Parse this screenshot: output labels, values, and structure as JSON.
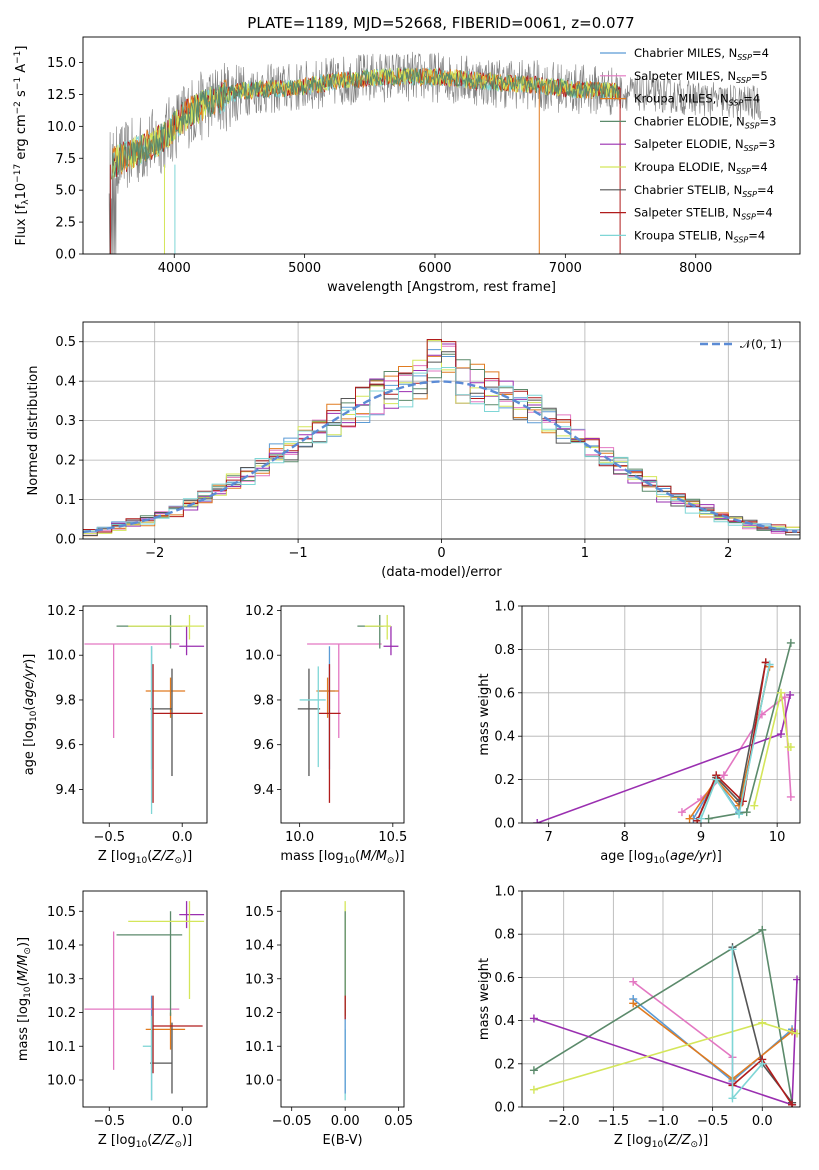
{
  "figure": {
    "title": "PLATE=1189, MJD=52668, FIBERID=0061, z=0.077"
  },
  "colors": {
    "Chabrier MILES": "#5b9bd5",
    "Salpeter MILES": "#e377c2",
    "Kroupa MILES": "#e07b20",
    "Chabrier ELODIE": "#5b8a6b",
    "Salpeter ELODIE": "#9a2fb0",
    "Kroupa ELODIE": "#d4e65a",
    "Chabrier STELIB": "#555555",
    "Salpeter STELIB": "#b01c1c",
    "Kroupa STELIB": "#7fd6d6",
    "data": "#7f7f7f",
    "normal": "#5b8bd5"
  },
  "chart_data": [
    {
      "id": "spectrum",
      "type": "line",
      "xlabel": "wavelength [Angstrom, rest frame]",
      "ylabel": "Flux [f_λ10^-17 erg cm^-2 s^-1 A^-1]",
      "xlim": [
        3300,
        8800
      ],
      "ylim": [
        0,
        17
      ],
      "xticks": [
        4000,
        5000,
        6000,
        7000,
        8000
      ],
      "yticks": [
        0.0,
        2.5,
        5.0,
        7.5,
        10.0,
        12.5,
        15.0
      ],
      "legend_position": "top-right",
      "legend": [
        {
          "label": "Chabrier MILES, N_SSP=4",
          "text": "Chabrier MILES, N",
          "sub": "SSP",
          "tail": "=4"
        },
        {
          "label": "Salpeter MILES, N_SSP=5",
          "text": "Salpeter MILES, N",
          "sub": "SSP",
          "tail": "=5"
        },
        {
          "label": "Kroupa MILES, N_SSP=4",
          "text": "Kroupa MILES, N",
          "sub": "SSP",
          "tail": "=4"
        },
        {
          "label": "Chabrier ELODIE, N_SSP=3",
          "text": "Chabrier ELODIE, N",
          "sub": "SSP",
          "tail": "=3"
        },
        {
          "label": "Salpeter ELODIE, N_SSP=3",
          "text": "Salpeter ELODIE, N",
          "sub": "SSP",
          "tail": "=3"
        },
        {
          "label": "Kroupa ELODIE, N_SSP=4",
          "text": "Kroupa ELODIE, N",
          "sub": "SSP",
          "tail": "=4"
        },
        {
          "label": "Chabrier STELIB, N_SSP=4",
          "text": "Chabrier STELIB, N",
          "sub": "SSP",
          "tail": "=4"
        },
        {
          "label": "Salpeter STELIB, N_SSP=4",
          "text": "Salpeter STELIB, N",
          "sub": "SSP",
          "tail": "=4"
        },
        {
          "label": "Kroupa STELIB, N_SSP=4",
          "text": "Kroupa STELIB, N",
          "sub": "SSP",
          "tail": "=4"
        }
      ],
      "continuum": [
        [
          3500,
          7.0
        ],
        [
          3700,
          8.0
        ],
        [
          3900,
          9.0
        ],
        [
          4100,
          11.0
        ],
        [
          4300,
          12.0
        ],
        [
          4500,
          12.8
        ],
        [
          4700,
          12.9
        ],
        [
          4900,
          13.0
        ],
        [
          5100,
          13.3
        ],
        [
          5300,
          13.6
        ],
        [
          5500,
          13.8
        ],
        [
          5700,
          13.9
        ],
        [
          5900,
          13.9
        ],
        [
          6100,
          13.8
        ],
        [
          6300,
          13.6
        ],
        [
          6500,
          13.4
        ],
        [
          6700,
          13.3
        ],
        [
          6900,
          13.1
        ],
        [
          7100,
          12.9
        ],
        [
          7300,
          12.8
        ],
        [
          7500,
          12.6
        ],
        [
          7700,
          12.5
        ],
        [
          7900,
          12.3
        ],
        [
          8100,
          12.1
        ],
        [
          8300,
          11.9
        ],
        [
          8500,
          11.8
        ]
      ],
      "data_range": [
        3500,
        8500
      ],
      "model_range": [
        3520,
        7420
      ],
      "data_noise": 2.0,
      "model_noise": 0.7
    },
    {
      "id": "residuals",
      "type": "histogram",
      "xlabel": "(data-model)/error",
      "ylabel": "Normed distribution",
      "xlim": [
        -2.5,
        2.5
      ],
      "ylim": [
        0,
        0.55
      ],
      "xticks": [
        -2,
        -1,
        0,
        1,
        2
      ],
      "yticks": [
        0.0,
        0.1,
        0.2,
        0.3,
        0.4,
        0.5
      ],
      "grid": true,
      "legend_position": "top-right",
      "legend": "𝒩(0, 1)",
      "bin_width": 0.1,
      "curve_label": "N(0,1)"
    },
    {
      "id": "age-vs-Z",
      "type": "errorbar",
      "xlabel": "Z [log10(Z/Z☉)]",
      "ylabel": "age [log10(age/yr)]",
      "xlim": [
        -0.68,
        0.17
      ],
      "ylim": [
        9.25,
        10.22
      ],
      "xticks": [
        -0.5,
        0.0
      ],
      "yticks": [
        9.4,
        9.6,
        9.8,
        10.0,
        10.2
      ],
      "points": [
        {
          "series": "Chabrier MILES",
          "x": -0.21,
          "xerr": [
            0.0,
            0.0
          ],
          "y": 9.84,
          "yerr": [
            0.35,
            0.2
          ]
        },
        {
          "series": "Salpeter MILES",
          "x": -0.47,
          "xerr": [
            0.2,
            0.45
          ],
          "y": 10.05,
          "yerr": [
            0.42,
            0.0
          ]
        },
        {
          "series": "Kroupa MILES",
          "x": -0.08,
          "xerr": [
            0.17,
            0.1
          ],
          "y": 9.84,
          "yerr": [
            0.12,
            0.06
          ]
        },
        {
          "series": "Chabrier ELODIE",
          "x": -0.08,
          "xerr": [
            0.37,
            0.08
          ],
          "y": 10.13,
          "yerr": [
            0.1,
            0.05
          ]
        },
        {
          "series": "Salpeter ELODIE",
          "x": 0.03,
          "xerr": [
            0.05,
            0.12
          ],
          "y": 10.04,
          "yerr": [
            0.04,
            0.09
          ]
        },
        {
          "series": "Kroupa ELODIE",
          "x": 0.05,
          "xerr": [
            0.42,
            0.1
          ],
          "y": 10.13,
          "yerr": [
            0.06,
            0.05
          ]
        },
        {
          "series": "Chabrier STELIB",
          "x": -0.07,
          "xerr": [
            0.15,
            0.0
          ],
          "y": 9.76,
          "yerr": [
            0.3,
            0.18
          ]
        },
        {
          "series": "Salpeter STELIB",
          "x": -0.2,
          "xerr": [
            0.0,
            0.34
          ],
          "y": 9.74,
          "yerr": [
            0.4,
            0.22
          ]
        },
        {
          "series": "Kroupa STELIB",
          "x": -0.21,
          "xerr": [
            0.0,
            0.0
          ],
          "y": 9.84,
          "yerr": [
            0.55,
            0.2
          ]
        }
      ]
    },
    {
      "id": "age-vs-mass",
      "type": "errorbar",
      "xlabel": "mass [log10(M/M☉)]",
      "ylabel": "",
      "xlim": [
        9.9,
        10.56
      ],
      "ylim": [
        9.25,
        10.22
      ],
      "xticks": [
        10.0,
        10.5
      ],
      "yticks": [
        9.4,
        9.6,
        9.8,
        10.0,
        10.2
      ],
      "points": [
        {
          "series": "Chabrier MILES",
          "x": 10.16,
          "xerr": [
            0.06,
            0.03
          ],
          "y": 9.84,
          "yerr": [
            0.35,
            0.2
          ]
        },
        {
          "series": "Salpeter MILES",
          "x": 10.21,
          "xerr": [
            0.17,
            0.23
          ],
          "y": 10.05,
          "yerr": [
            0.42,
            0.0
          ]
        },
        {
          "series": "Kroupa MILES",
          "x": 10.15,
          "xerr": [
            0.06,
            0.06
          ],
          "y": 9.84,
          "yerr": [
            0.12,
            0.06
          ]
        },
        {
          "series": "Chabrier ELODIE",
          "x": 10.43,
          "xerr": [
            0.12,
            0.02
          ],
          "y": 10.13,
          "yerr": [
            0.1,
            0.05
          ]
        },
        {
          "series": "Salpeter ELODIE",
          "x": 10.49,
          "xerr": [
            0.04,
            0.04
          ],
          "y": 10.04,
          "yerr": [
            0.04,
            0.09
          ]
        },
        {
          "series": "Kroupa ELODIE",
          "x": 10.47,
          "xerr": [
            0.12,
            0.02
          ],
          "y": 10.13,
          "yerr": [
            0.06,
            0.05
          ]
        },
        {
          "series": "Chabrier STELIB",
          "x": 10.05,
          "xerr": [
            0.06,
            0.06
          ],
          "y": 9.76,
          "yerr": [
            0.3,
            0.18
          ]
        },
        {
          "series": "Salpeter STELIB",
          "x": 10.16,
          "xerr": [
            0.06,
            0.06
          ],
          "y": 9.74,
          "yerr": [
            0.4,
            0.22
          ]
        },
        {
          "series": "Kroupa STELIB",
          "x": 10.1,
          "xerr": [
            0.1,
            0.04
          ],
          "y": 9.8,
          "yerr": [
            0.3,
            0.15
          ]
        }
      ]
    },
    {
      "id": "mass-weight-vs-age",
      "type": "line",
      "xlabel": "age [log10(age/yr)]",
      "ylabel": "mass weight",
      "xlim": [
        6.65,
        10.3
      ],
      "ylim": [
        0,
        1.0
      ],
      "xticks": [
        7,
        8,
        9,
        10
      ],
      "yticks": [
        0.0,
        0.2,
        0.4,
        0.6,
        0.8,
        1.0
      ],
      "grid": true,
      "series": [
        {
          "name": "Chabrier MILES",
          "x": [
            8.9,
            9.2,
            9.5,
            9.9
          ],
          "y": [
            0.02,
            0.2,
            0.05,
            0.73
          ]
        },
        {
          "name": "Salpeter MILES",
          "x": [
            8.75,
            9.0,
            9.3,
            9.8,
            10.1,
            10.18
          ],
          "y": [
            0.05,
            0.11,
            0.22,
            0.5,
            0.58,
            0.12
          ]
        },
        {
          "name": "Kroupa MILES",
          "x": [
            8.85,
            9.2,
            9.5,
            9.9
          ],
          "y": [
            0.02,
            0.2,
            0.08,
            0.72
          ]
        },
        {
          "name": "Chabrier ELODIE",
          "x": [
            9.1,
            9.6,
            10.18
          ],
          "y": [
            0.02,
            0.05,
            0.83
          ]
        },
        {
          "name": "Salpeter ELODIE",
          "x": [
            6.85,
            10.05,
            10.17
          ],
          "y": [
            0.0,
            0.41,
            0.59
          ]
        },
        {
          "name": "Kroupa ELODIE",
          "x": [
            9.7,
            10.05,
            10.15,
            10.18
          ],
          "y": [
            0.08,
            0.6,
            0.35,
            0.35
          ]
        },
        {
          "name": "Chabrier STELIB",
          "x": [
            8.95,
            9.2,
            9.5,
            9.85
          ],
          "y": [
            0.01,
            0.21,
            0.1,
            0.74
          ]
        },
        {
          "name": "Salpeter STELIB",
          "x": [
            8.95,
            9.2,
            9.55,
            9.85
          ],
          "y": [
            0.01,
            0.22,
            0.1,
            0.74
          ]
        },
        {
          "name": "Kroupa STELIB",
          "x": [
            9.0,
            9.2,
            9.5,
            9.9
          ],
          "y": [
            0.02,
            0.2,
            0.04,
            0.73
          ]
        }
      ]
    },
    {
      "id": "mass-vs-Z",
      "type": "errorbar",
      "xlabel": "Z [log10(Z/Z☉)]",
      "ylabel": "mass [log10(M/M☉)]",
      "xlim": [
        -0.68,
        0.17
      ],
      "ylim": [
        9.92,
        10.56
      ],
      "xticks": [
        -0.5,
        0.0
      ],
      "yticks": [
        10.0,
        10.1,
        10.2,
        10.3,
        10.4,
        10.5
      ],
      "points": [
        {
          "series": "Chabrier MILES",
          "x": -0.21,
          "xerr": [
            0.0,
            0.0
          ],
          "y": 10.16,
          "yerr": [
            0.22,
            0.09
          ]
        },
        {
          "series": "Salpeter MILES",
          "x": -0.47,
          "xerr": [
            0.2,
            0.45
          ],
          "y": 10.21,
          "yerr": [
            0.18,
            0.23
          ]
        },
        {
          "series": "Kroupa MILES",
          "x": -0.08,
          "xerr": [
            0.17,
            0.1
          ],
          "y": 10.15,
          "yerr": [
            0.06,
            0.05
          ]
        },
        {
          "series": "Chabrier ELODIE",
          "x": -0.08,
          "xerr": [
            0.37,
            0.08
          ],
          "y": 10.43,
          "yerr": [
            0.24,
            0.07
          ]
        },
        {
          "series": "Salpeter ELODIE",
          "x": 0.03,
          "xerr": [
            0.05,
            0.12
          ],
          "y": 10.49,
          "yerr": [
            0.04,
            0.04
          ]
        },
        {
          "series": "Kroupa ELODIE",
          "x": 0.05,
          "xerr": [
            0.42,
            0.1
          ],
          "y": 10.47,
          "yerr": [
            0.23,
            0.06
          ]
        },
        {
          "series": "Chabrier STELIB",
          "x": -0.07,
          "xerr": [
            0.15,
            0.0
          ],
          "y": 10.05,
          "yerr": [
            0.09,
            0.12
          ]
        },
        {
          "series": "Salpeter STELIB",
          "x": -0.2,
          "xerr": [
            0.0,
            0.34
          ],
          "y": 10.16,
          "yerr": [
            0.14,
            0.09
          ]
        },
        {
          "series": "Kroupa STELIB",
          "x": -0.21,
          "xerr": [
            0.06,
            0.0
          ],
          "y": 10.1,
          "yerr": [
            0.16,
            0.09
          ]
        }
      ]
    },
    {
      "id": "mass-vs-EBV",
      "type": "errorbar",
      "xlabel": "E(B-V)",
      "ylabel": "",
      "xlim": [
        -0.06,
        0.055
      ],
      "ylim": [
        9.92,
        10.56
      ],
      "xticks": [
        -0.05,
        0.0,
        0.05
      ],
      "yticks": [
        10.0,
        10.1,
        10.2,
        10.3,
        10.4,
        10.5
      ],
      "points": [
        {
          "series": "Kroupa STELIB",
          "x": 0.0,
          "xerr": [
            0,
            0
          ],
          "y": 10.1,
          "yerr": [
            0.16,
            0.05
          ]
        },
        {
          "series": "Chabrier MILES",
          "x": 0.0,
          "xerr": [
            0,
            0
          ],
          "y": 10.16,
          "yerr": [
            0.2,
            0.05
          ]
        },
        {
          "series": "Kroupa ELODIE",
          "x": 0.0,
          "xerr": [
            0,
            0
          ],
          "y": 10.47,
          "yerr": [
            0.28,
            0.06
          ]
        },
        {
          "series": "Chabrier ELODIE",
          "x": 0.0,
          "xerr": [
            0,
            0
          ],
          "y": 10.43,
          "yerr": [
            0.24,
            0.07
          ]
        },
        {
          "series": "Salpeter STELIB",
          "x": 0.0,
          "xerr": [
            0,
            0
          ],
          "y": 10.2,
          "yerr": [
            0.02,
            0.05
          ]
        }
      ]
    },
    {
      "id": "mass-weight-vs-Z",
      "type": "line",
      "xlabel": "Z [log10(Z/Z☉)]",
      "ylabel": "mass weight",
      "xlim": [
        -2.42,
        0.38
      ],
      "ylim": [
        0,
        1.0
      ],
      "xticks": [
        -2.0,
        -1.5,
        -1.0,
        -0.5,
        0.0
      ],
      "yticks": [
        0.0,
        0.2,
        0.4,
        0.6,
        0.8,
        1.0
      ],
      "grid": true,
      "series": [
        {
          "name": "Chabrier MILES",
          "x": [
            -1.3,
            -0.3,
            0.3
          ],
          "y": [
            0.5,
            0.12,
            0.36
          ]
        },
        {
          "name": "Salpeter MILES",
          "x": [
            -1.3,
            -0.3,
            -0.3
          ],
          "y": [
            0.58,
            0.23,
            0.11
          ]
        },
        {
          "name": "Kroupa MILES",
          "x": [
            -1.3,
            -0.3,
            0.3
          ],
          "y": [
            0.48,
            0.13,
            0.35
          ]
        },
        {
          "name": "Chabrier ELODIE",
          "x": [
            -2.3,
            0.0,
            0.3
          ],
          "y": [
            0.17,
            0.82,
            0.02
          ]
        },
        {
          "name": "Salpeter ELODIE",
          "x": [
            -2.3,
            0.3,
            0.35
          ],
          "y": [
            0.41,
            0.01,
            0.59
          ]
        },
        {
          "name": "Kroupa ELODIE",
          "x": [
            -2.3,
            0.0,
            0.35
          ],
          "y": [
            0.08,
            0.39,
            0.34
          ]
        },
        {
          "name": "Chabrier STELIB",
          "x": [
            -0.3,
            0.0,
            0.3
          ],
          "y": [
            0.74,
            0.2,
            0.02
          ]
        },
        {
          "name": "Salpeter STELIB",
          "x": [
            -0.3,
            0.0,
            0.3
          ],
          "y": [
            0.1,
            0.22,
            0.01
          ]
        },
        {
          "name": "Kroupa STELIB",
          "x": [
            -0.3,
            -0.3,
            0.0
          ],
          "y": [
            0.73,
            0.04,
            0.2
          ]
        }
      ]
    }
  ]
}
